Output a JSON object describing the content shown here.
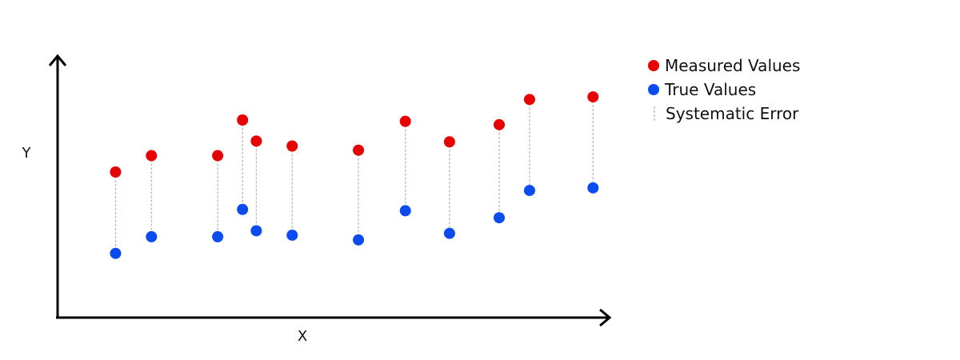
{
  "chart_data": {
    "type": "scatter",
    "title": "",
    "xlabel": "X",
    "ylabel": "Y",
    "xlim": [
      0,
      10
    ],
    "ylim": [
      0,
      10
    ],
    "grid": false,
    "legend_position": "top-right",
    "colors": {
      "measured": "#e60000",
      "true": "#0a4cf0",
      "error": "#b9b9b9",
      "axis": "#000000"
    },
    "x": [
      1.05,
      1.7,
      2.9,
      3.35,
      3.6,
      4.25,
      5.45,
      6.3,
      7.1,
      8.0,
      8.55,
      9.7
    ],
    "series": [
      {
        "name": "Measured Values",
        "values": [
          5.6,
          6.23,
          6.23,
          7.6,
          6.79,
          6.6,
          6.44,
          7.55,
          6.76,
          7.42,
          8.39,
          8.49
        ]
      },
      {
        "name": "True Values",
        "values": [
          2.47,
          3.11,
          3.11,
          4.16,
          3.34,
          3.17,
          2.99,
          4.11,
          3.24,
          3.84,
          4.89,
          4.99
        ]
      }
    ],
    "legend": {
      "measured": "Measured Values",
      "true": "True Values",
      "error": "Systematic Error"
    }
  }
}
